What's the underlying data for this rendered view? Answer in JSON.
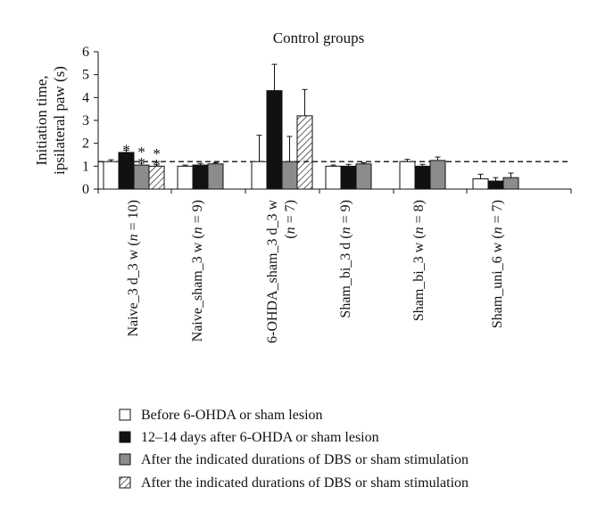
{
  "chart_data": {
    "type": "bar",
    "title": "Control groups",
    "ylabel_lines": [
      "Initiation time,",
      "ipsilateral paw (s)"
    ],
    "ylim": [
      0,
      6
    ],
    "yticks": [
      "0",
      "1",
      "2",
      "3",
      "4",
      "5",
      "6"
    ],
    "grid": false,
    "reference_line": 1.2,
    "legend_position": "bottom",
    "colors": {
      "before": "#ffffff",
      "days12_14": "#111111",
      "after_grey": "#8c8c8c",
      "after_hatched": "hatched"
    },
    "series": [
      {
        "name": "Before 6-OHDA or sham lesion"
      },
      {
        "name": "12–14 days after 6-OHDA or sham lesion"
      },
      {
        "name": "After the indicated durations of DBS or sham stimulation"
      },
      {
        "name": "After the indicated durations of DBS or sham stimulation"
      }
    ],
    "groups": [
      {
        "label": [
          {
            "t": "Naive_3 d_3 w ("
          },
          {
            "t": "n",
            "i": true
          },
          {
            "t": " = 10)"
          }
        ],
        "bars": [
          {
            "series": 0,
            "value": 1.2,
            "err": 0.08
          },
          {
            "series": 1,
            "value": 1.6,
            "err": 0.1,
            "mark": "*"
          },
          {
            "series": 2,
            "value": 1.05,
            "err": 0.08,
            "mark": "**"
          },
          {
            "series": 3,
            "value": 1.0,
            "err": 0.06,
            "mark": "**"
          }
        ]
      },
      {
        "label": [
          {
            "t": "Naive_sham_3 w ("
          },
          {
            "t": "n",
            "i": true
          },
          {
            "t": " = 9)"
          }
        ],
        "bars": [
          {
            "series": 0,
            "value": 1.0,
            "err": 0.05
          },
          {
            "series": 1,
            "value": 1.05,
            "err": 0.07
          },
          {
            "series": 2,
            "value": 1.1,
            "err": 0.05
          }
        ]
      },
      {
        "label": [
          {
            "t": "6-OHDA_sham_3 d_3 w"
          }
        ],
        "label2": [
          {
            "t": "("
          },
          {
            "t": "n",
            "i": true
          },
          {
            "t": " = 7)"
          }
        ],
        "bars": [
          {
            "series": 0,
            "value": 1.2,
            "err": 1.15
          },
          {
            "series": 1,
            "value": 4.3,
            "err": 1.15
          },
          {
            "series": 2,
            "value": 1.2,
            "err": 1.1
          },
          {
            "series": 3,
            "value": 3.2,
            "err": 1.15
          }
        ]
      },
      {
        "label": [
          {
            "t": "Sham_bi_3 d ("
          },
          {
            "t": "n",
            "i": true
          },
          {
            "t": " = 9)"
          }
        ],
        "bars": [
          {
            "series": 0,
            "value": 1.0,
            "err": 0.05
          },
          {
            "series": 1,
            "value": 1.0,
            "err": 0.08
          },
          {
            "series": 2,
            "value": 1.1,
            "err": 0.05
          }
        ]
      },
      {
        "label": [
          {
            "t": "Sham_bi_3 w ("
          },
          {
            "t": "n",
            "i": true
          },
          {
            "t": " = 8)"
          }
        ],
        "bars": [
          {
            "series": 0,
            "value": 1.2,
            "err": 0.1
          },
          {
            "series": 1,
            "value": 1.0,
            "err": 0.08
          },
          {
            "series": 2,
            "value": 1.25,
            "err": 0.15
          }
        ]
      },
      {
        "label": [
          {
            "t": "Sham_uni_6 w ("
          },
          {
            "t": "n",
            "i": true
          },
          {
            "t": " = 7)"
          }
        ],
        "bars": [
          {
            "series": 0,
            "value": 0.45,
            "err": 0.2
          },
          {
            "series": 1,
            "value": 0.35,
            "err": 0.15
          },
          {
            "series": 2,
            "value": 0.5,
            "err": 0.2
          }
        ]
      }
    ]
  }
}
